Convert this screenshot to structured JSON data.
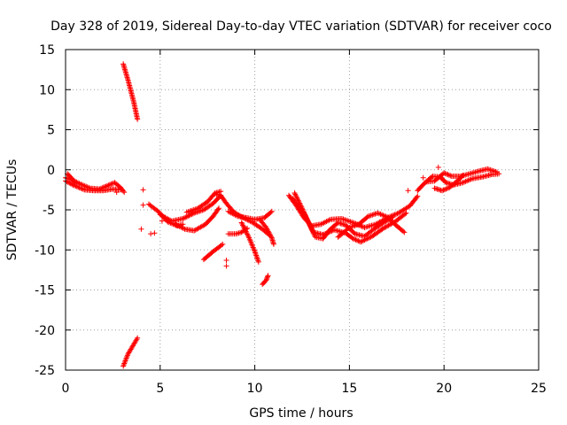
{
  "chart_data": {
    "type": "scatter",
    "title": "Day 328 of 2019, Sidereal Day-to-day VTEC variation (SDTVAR) for receiver coco",
    "xlabel": "GPS time / hours",
    "ylabel": "SDTVAR / TECUs",
    "xlim": [
      0,
      25
    ],
    "ylim": [
      -25,
      15
    ],
    "xticks": [
      0,
      5,
      10,
      15,
      20,
      25
    ],
    "yticks": [
      15,
      10,
      5,
      0,
      -5,
      -10,
      -15,
      -20,
      -25
    ],
    "grid": true,
    "marker": "plus",
    "color": "#ff0000",
    "segments": [
      [
        [
          0.0,
          -1.0
        ],
        [
          0.3,
          -1.2
        ],
        [
          0.8,
          -1.8
        ],
        [
          1.3,
          -2.3
        ],
        [
          1.8,
          -2.4
        ],
        [
          2.2,
          -2.0
        ],
        [
          2.6,
          -1.6
        ],
        [
          2.9,
          -2.2
        ],
        [
          3.1,
          -2.8
        ]
      ],
      [
        [
          0.0,
          -1.4
        ],
        [
          0.4,
          -1.9
        ],
        [
          1.0,
          -2.5
        ],
        [
          1.5,
          -2.6
        ],
        [
          2.0,
          -2.6
        ],
        [
          2.5,
          -2.4
        ],
        [
          3.0,
          -2.5
        ]
      ],
      [
        [
          0.1,
          -0.5
        ],
        [
          0.3,
          -1.0
        ],
        [
          0.5,
          -1.6
        ]
      ],
      [
        [
          3.05,
          13.2
        ],
        [
          3.3,
          11.2
        ],
        [
          3.6,
          8.5
        ],
        [
          3.8,
          6.3
        ]
      ],
      [
        [
          3.05,
          -24.5
        ],
        [
          3.3,
          -23.0
        ],
        [
          3.6,
          -21.8
        ],
        [
          3.8,
          -21.0
        ]
      ],
      [
        [
          4.4,
          -4.3
        ],
        [
          4.9,
          -5.2
        ],
        [
          5.4,
          -6.5
        ],
        [
          5.9,
          -7.0
        ],
        [
          6.2,
          -6.8
        ]
      ],
      [
        [
          5.0,
          -5.6
        ],
        [
          5.6,
          -6.4
        ],
        [
          6.2,
          -6.1
        ],
        [
          6.8,
          -5.4
        ],
        [
          7.3,
          -5.0
        ],
        [
          7.8,
          -4.2
        ],
        [
          8.2,
          -3.2
        ]
      ],
      [
        [
          5.8,
          -6.8
        ],
        [
          6.3,
          -7.4
        ],
        [
          6.8,
          -7.6
        ],
        [
          7.4,
          -6.8
        ],
        [
          7.8,
          -5.8
        ],
        [
          8.1,
          -4.8
        ]
      ],
      [
        [
          6.4,
          -5.3
        ],
        [
          7.0,
          -4.8
        ],
        [
          7.5,
          -4.0
        ],
        [
          7.9,
          -2.9
        ],
        [
          8.2,
          -2.7
        ]
      ],
      [
        [
          7.3,
          -11.2
        ],
        [
          7.8,
          -10.2
        ],
        [
          8.3,
          -9.3
        ]
      ],
      [
        [
          8.6,
          -8.0
        ],
        [
          9.0,
          -8.0
        ],
        [
          9.3,
          -7.8
        ],
        [
          9.6,
          -7.3
        ]
      ],
      [
        [
          7.9,
          -3.0
        ],
        [
          8.2,
          -3.2
        ],
        [
          8.5,
          -4.2
        ],
        [
          8.9,
          -5.3
        ],
        [
          9.4,
          -6.0
        ],
        [
          9.9,
          -6.6
        ],
        [
          10.4,
          -7.4
        ],
        [
          10.8,
          -8.2
        ]
      ],
      [
        [
          8.6,
          -5.2
        ],
        [
          9.1,
          -5.8
        ],
        [
          9.6,
          -6.0
        ],
        [
          10.0,
          -6.2
        ],
        [
          10.5,
          -6.0
        ],
        [
          10.9,
          -5.2
        ]
      ],
      [
        [
          9.3,
          -6.6
        ],
        [
          9.7,
          -8.5
        ],
        [
          10.0,
          -10.2
        ],
        [
          10.2,
          -11.5
        ]
      ],
      [
        [
          10.4,
          -14.3
        ],
        [
          10.6,
          -13.8
        ],
        [
          10.7,
          -13.2
        ]
      ],
      [
        [
          10.3,
          -6.3
        ],
        [
          10.6,
          -7.2
        ],
        [
          10.9,
          -8.5
        ],
        [
          11.0,
          -9.3
        ]
      ],
      [
        [
          11.8,
          -3.2
        ],
        [
          12.2,
          -4.5
        ],
        [
          12.6,
          -6.0
        ],
        [
          13.0,
          -7.0
        ],
        [
          13.5,
          -6.8
        ],
        [
          14.0,
          -6.2
        ],
        [
          14.6,
          -6.1
        ],
        [
          15.2,
          -6.6
        ],
        [
          15.8,
          -7.2
        ],
        [
          16.4,
          -6.8
        ],
        [
          17.0,
          -6.0
        ],
        [
          17.6,
          -5.4
        ],
        [
          18.2,
          -4.5
        ],
        [
          18.6,
          -3.3
        ]
      ],
      [
        [
          12.1,
          -2.9
        ],
        [
          12.5,
          -4.8
        ],
        [
          12.9,
          -6.9
        ],
        [
          13.2,
          -8.4
        ],
        [
          13.6,
          -8.6
        ],
        [
          14.0,
          -7.4
        ],
        [
          14.4,
          -6.6
        ],
        [
          14.8,
          -6.9
        ],
        [
          15.3,
          -8.0
        ],
        [
          15.8,
          -8.3
        ],
        [
          16.3,
          -7.4
        ],
        [
          16.8,
          -6.6
        ],
        [
          17.3,
          -5.9
        ]
      ],
      [
        [
          12.0,
          -3.6
        ],
        [
          12.6,
          -5.4
        ],
        [
          13.1,
          -7.8
        ],
        [
          13.6,
          -8.1
        ],
        [
          14.2,
          -7.5
        ],
        [
          14.8,
          -7.9
        ],
        [
          15.2,
          -8.6
        ],
        [
          15.6,
          -9.0
        ],
        [
          16.2,
          -8.3
        ],
        [
          16.8,
          -7.3
        ],
        [
          17.4,
          -6.5
        ],
        [
          18.0,
          -5.4
        ]
      ],
      [
        [
          14.4,
          -8.4
        ],
        [
          14.8,
          -7.6
        ],
        [
          15.0,
          -7.2
        ],
        [
          15.5,
          -6.8
        ],
        [
          16.0,
          -5.8
        ],
        [
          16.5,
          -5.4
        ],
        [
          17.0,
          -5.9
        ],
        [
          17.5,
          -7.0
        ],
        [
          17.9,
          -7.8
        ]
      ],
      [
        [
          18.6,
          -2.6
        ],
        [
          19.0,
          -1.6
        ],
        [
          19.4,
          -0.8
        ],
        [
          19.8,
          -0.9
        ],
        [
          20.1,
          -1.6
        ],
        [
          20.5,
          -1.9
        ],
        [
          21.0,
          -1.6
        ],
        [
          21.5,
          -1.1
        ],
        [
          22.0,
          -0.9
        ],
        [
          22.5,
          -0.6
        ],
        [
          22.9,
          -0.5
        ]
      ],
      [
        [
          19.1,
          -1.5
        ],
        [
          19.5,
          -1.4
        ],
        [
          20.0,
          -0.4
        ],
        [
          20.4,
          -0.8
        ],
        [
          20.9,
          -0.8
        ],
        [
          21.2,
          -0.6
        ],
        [
          21.8,
          -0.2
        ],
        [
          22.3,
          0.1
        ],
        [
          22.8,
          -0.3
        ]
      ],
      [
        [
          19.5,
          -2.3
        ],
        [
          19.9,
          -2.6
        ],
        [
          20.3,
          -2.2
        ],
        [
          20.7,
          -1.4
        ],
        [
          21.0,
          -0.7
        ]
      ]
    ],
    "points": [
      [
        2.7,
        -2.8
      ],
      [
        4.1,
        -2.5
      ],
      [
        4.1,
        -4.4
      ],
      [
        4.0,
        -7.4
      ],
      [
        4.5,
        -8.0
      ],
      [
        4.7,
        -7.9
      ],
      [
        5.1,
        -6.4
      ],
      [
        8.5,
        -11.3
      ],
      [
        8.5,
        -12.0
      ],
      [
        19.7,
        0.3
      ],
      [
        18.1,
        -2.6
      ],
      [
        18.9,
        -1.0
      ]
    ]
  }
}
